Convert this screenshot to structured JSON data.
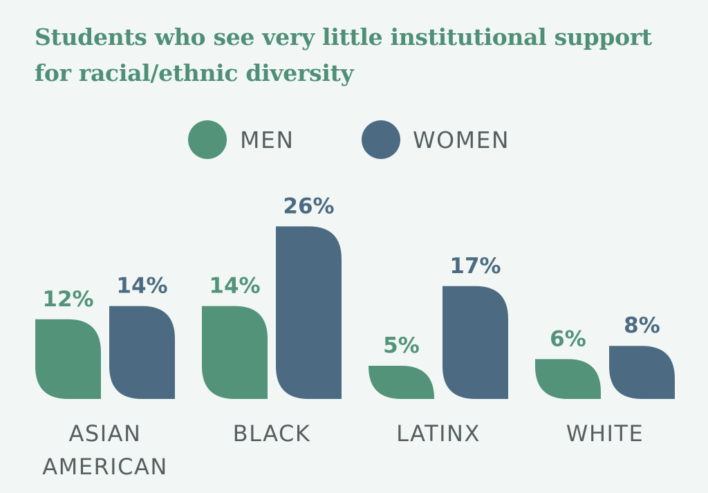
{
  "colors": {
    "background": "#f2f7f5",
    "title": "#4f8f78",
    "men": "#52937a",
    "women": "#4c6b82",
    "label": "#555f5f"
  },
  "chart_data": {
    "type": "bar",
    "title_lines": [
      "Students who see very little institutional support",
      "for racial/ethnic diversity"
    ],
    "categories": [
      [
        "ASIAN",
        "AMERICAN"
      ],
      [
        "BLACK"
      ],
      [
        "LATINX"
      ],
      [
        "WHITE"
      ]
    ],
    "series": [
      {
        "name": "MEN",
        "color": "#52937a",
        "values": [
          12,
          14,
          5,
          6
        ],
        "labels": [
          "12%",
          "14%",
          "5%",
          "6%"
        ]
      },
      {
        "name": "WOMEN",
        "color": "#4c6b82",
        "values": [
          14,
          26,
          17,
          8
        ],
        "labels": [
          "14%",
          "26%",
          "17%",
          "8%"
        ]
      }
    ],
    "unit": "%",
    "legend_position": "top-center",
    "grid": false,
    "axes_visible": false
  }
}
